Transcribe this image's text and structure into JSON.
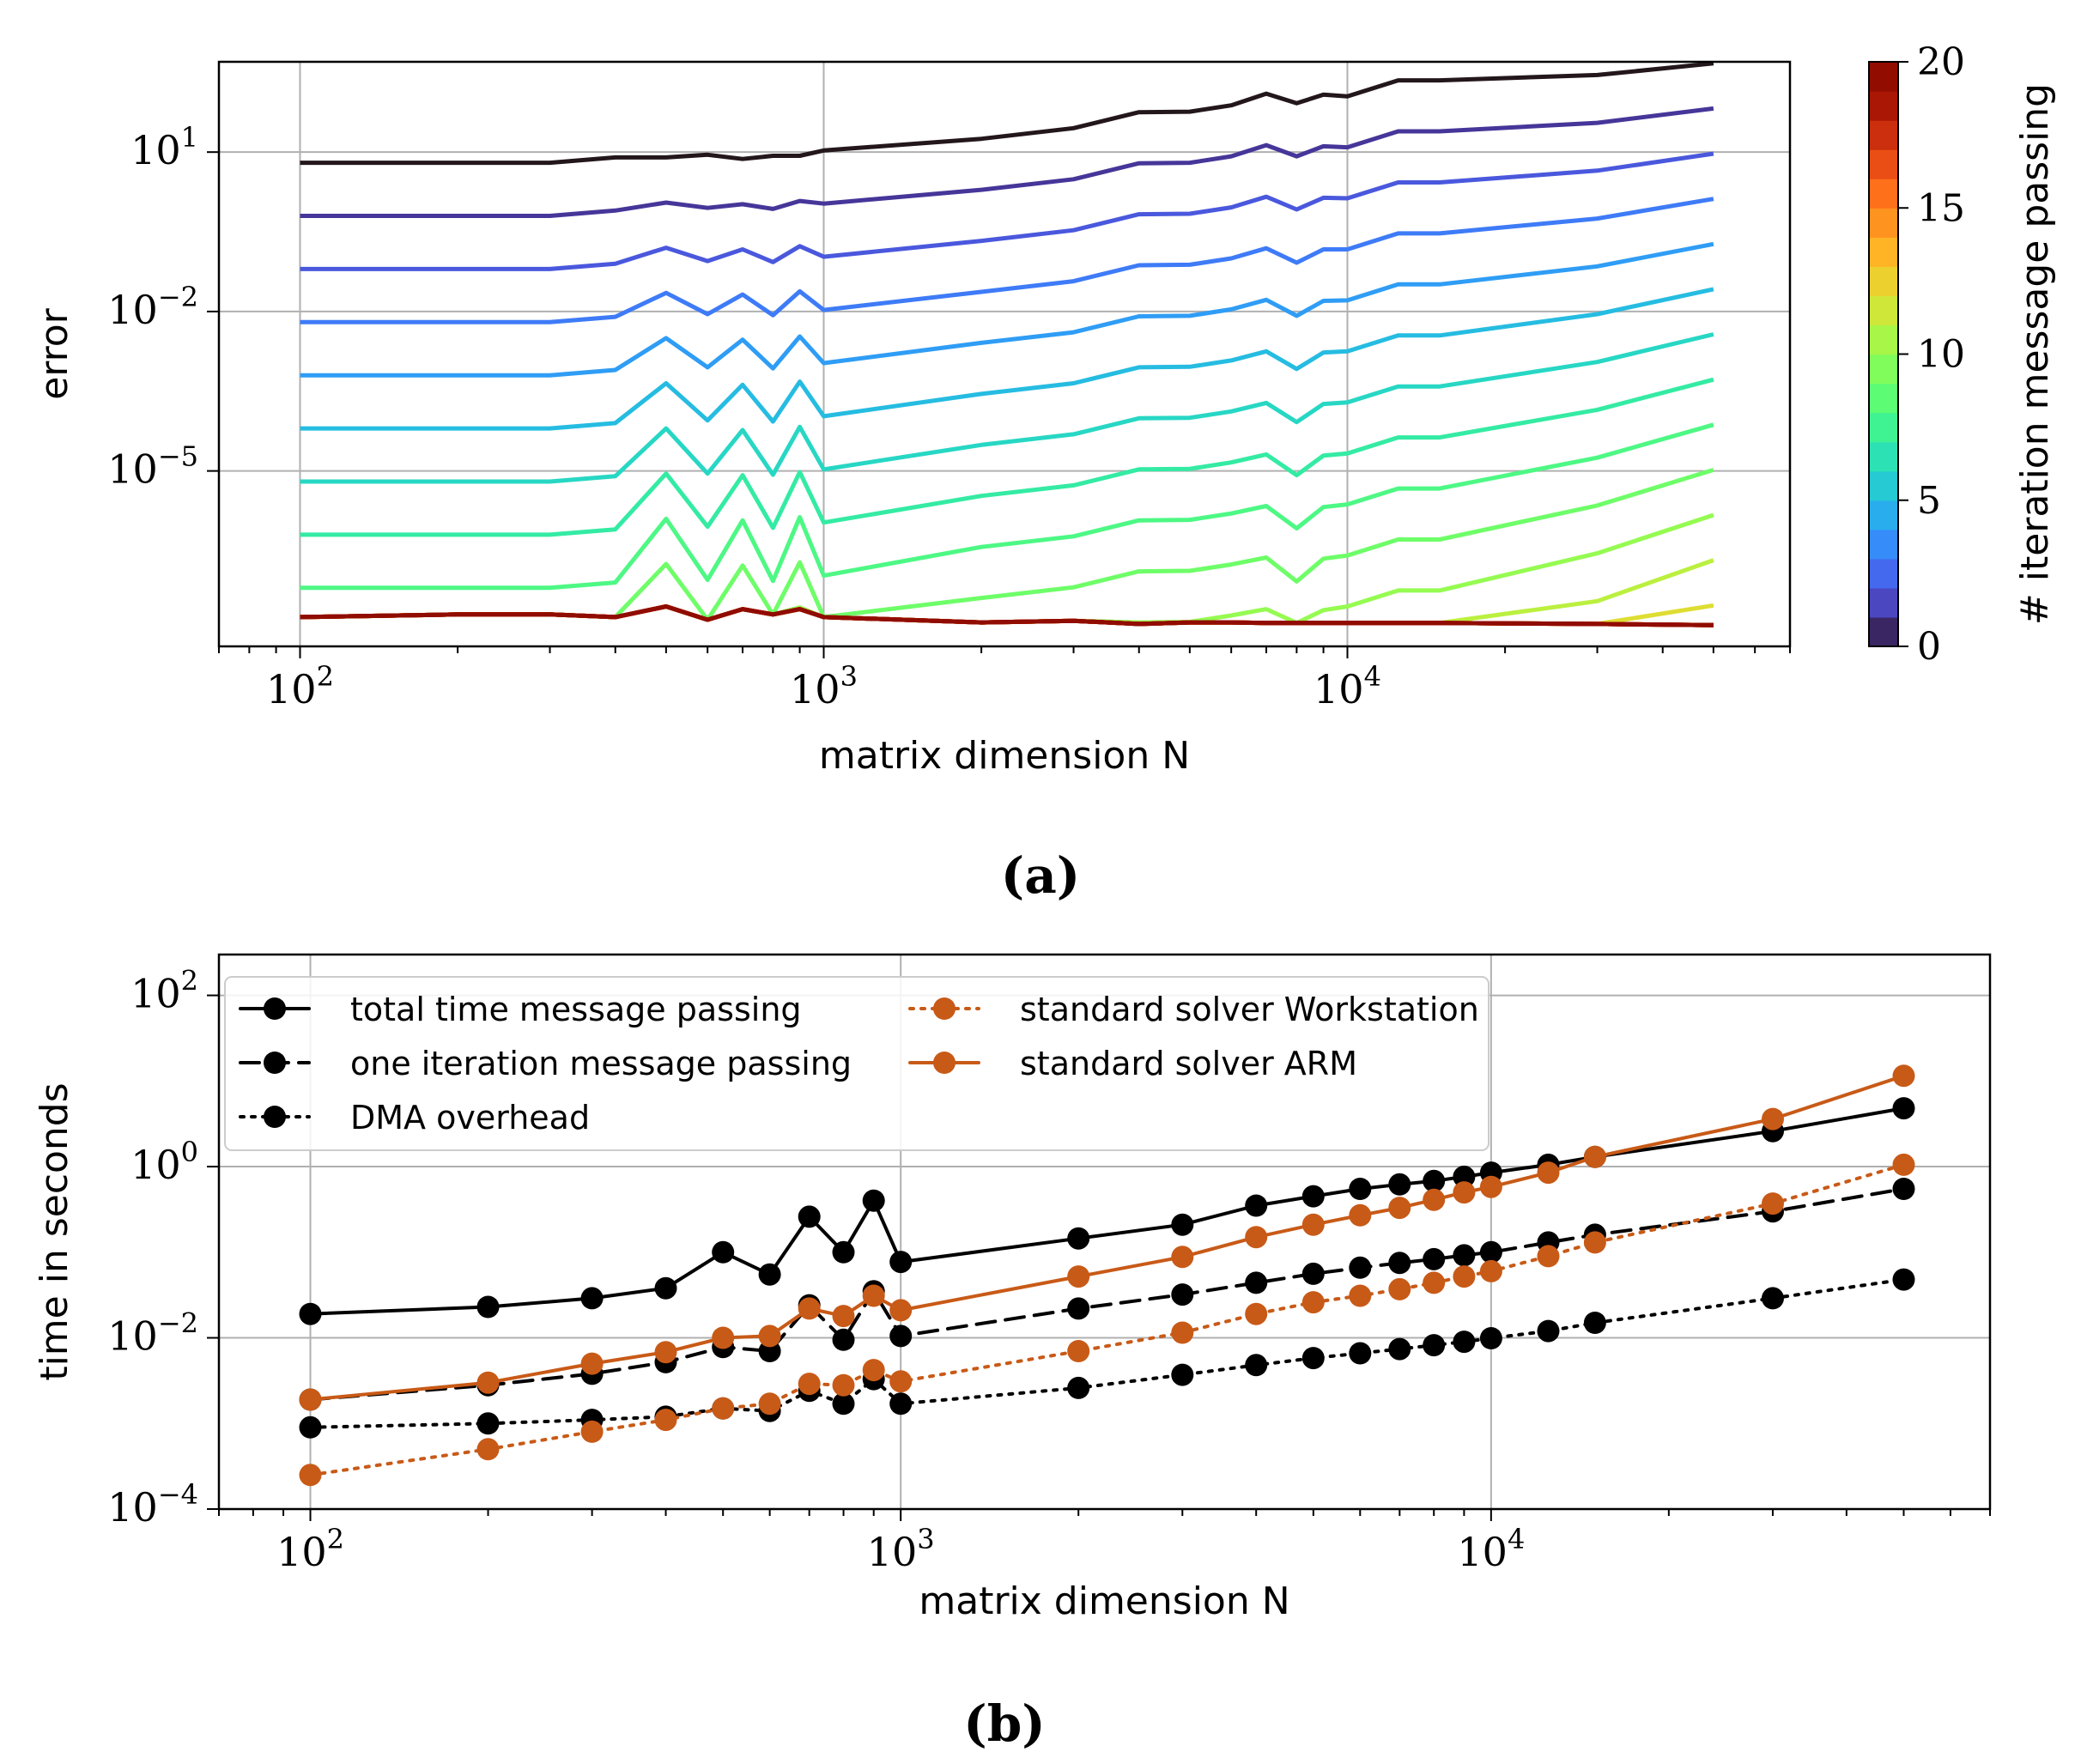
{
  "chart_data": [
    {
      "type": "line",
      "panel_label": "(a)",
      "xlabel": "matrix dimension N",
      "ylabel": "error",
      "xscale": "log",
      "yscale": "log",
      "xlim": [
        70,
        70000
      ],
      "ylim": [
        5e-09,
        500
      ],
      "x_ticks": [
        {
          "value": 100,
          "base": "10",
          "exp": "2"
        },
        {
          "value": 1000,
          "base": "10",
          "exp": "3"
        },
        {
          "value": 10000,
          "base": "10",
          "exp": "4"
        }
      ],
      "y_ticks": [
        {
          "value": 10,
          "base": "10",
          "exp": "1"
        },
        {
          "value": 0.01,
          "base": "10",
          "exp": "−2"
        },
        {
          "value": 1e-05,
          "base": "10",
          "exp": "−5"
        }
      ],
      "grid": true,
      "colorbar": {
        "label": "# iteration message passing",
        "min": 0,
        "max": 20,
        "ticks": [
          "0",
          "5",
          "10",
          "15",
          "20"
        ],
        "colormap": "turbo"
      },
      "x": [
        100,
        200,
        300,
        400,
        500,
        600,
        700,
        800,
        900,
        1000,
        2000,
        3000,
        4000,
        5000,
        6000,
        7000,
        8000,
        9000,
        10000,
        12500,
        15000,
        30000,
        50000
      ],
      "base_log_error": [
        0.8,
        0.8,
        0.8,
        0.9,
        0.9,
        0.95,
        0.87,
        0.93,
        0.93,
        1.03,
        1.25,
        1.45,
        1.75,
        1.76,
        1.88,
        2.1,
        1.92,
        2.08,
        2.05,
        2.35,
        2.35,
        2.45,
        2.67
      ],
      "decay_per_iteration": [
        1.0,
        1.0,
        1.0,
        1.0,
        0.85,
        1.0,
        0.85,
        1.0,
        0.85,
        1.0,
        0.96,
        0.96,
        0.96,
        0.96,
        0.96,
        0.97,
        1.0,
        0.97,
        0.96,
        0.96,
        0.96,
        0.9,
        0.85
      ],
      "error_floor_log": [
        -7.75,
        -7.7,
        -7.7,
        -7.75,
        -7.55,
        -7.8,
        -7.6,
        -7.7,
        -7.6,
        -7.75,
        -7.85,
        -7.82,
        -7.88,
        -7.85,
        -7.85,
        -7.86,
        -7.86,
        -7.86,
        -7.86,
        -7.86,
        -7.86,
        -7.88,
        -7.9
      ],
      "iterations": 21
    },
    {
      "type": "line",
      "panel_label": "(b)",
      "xlabel": "matrix dimension N",
      "ylabel": "time in seconds",
      "xscale": "log",
      "yscale": "log",
      "xlim": [
        70,
        70000
      ],
      "ylim": [
        0.0001,
        300
      ],
      "x_ticks": [
        {
          "value": 100,
          "base": "10",
          "exp": "2"
        },
        {
          "value": 1000,
          "base": "10",
          "exp": "3"
        },
        {
          "value": 10000,
          "base": "10",
          "exp": "4"
        }
      ],
      "y_ticks": [
        {
          "value": 100,
          "base": "10",
          "exp": "2"
        },
        {
          "value": 1,
          "base": "10",
          "exp": "0"
        },
        {
          "value": 0.01,
          "base": "10",
          "exp": "−2"
        },
        {
          "value": 0.0001,
          "base": "10",
          "exp": "−4"
        }
      ],
      "grid": true,
      "legend_placement": "top-left",
      "series": [
        {
          "name": "total time message passing",
          "color": "#000000",
          "style": "solid",
          "x": [
            100,
            200,
            300,
            400,
            500,
            600,
            700,
            800,
            900,
            1000,
            2000,
            3000,
            4000,
            5000,
            6000,
            7000,
            8000,
            9000,
            10000,
            12500,
            15000,
            30000,
            50000
          ],
          "values": [
            0.019,
            0.023,
            0.029,
            0.038,
            0.1,
            0.055,
            0.26,
            0.1,
            0.4,
            0.077,
            0.145,
            0.21,
            0.35,
            0.45,
            0.55,
            0.62,
            0.68,
            0.76,
            0.85,
            1.05,
            1.3,
            2.6,
            4.8
          ]
        },
        {
          "name": "one iteration message passing",
          "color": "#000000",
          "style": "dashed",
          "x": [
            100,
            200,
            300,
            400,
            500,
            600,
            700,
            800,
            900,
            1000,
            2000,
            3000,
            4000,
            5000,
            6000,
            7000,
            8000,
            9000,
            10000,
            12500,
            15000,
            30000,
            50000
          ],
          "values": [
            0.0019,
            0.0028,
            0.0038,
            0.0052,
            0.0078,
            0.007,
            0.024,
            0.0095,
            0.035,
            0.0105,
            0.022,
            0.032,
            0.044,
            0.056,
            0.066,
            0.075,
            0.083,
            0.092,
            0.1,
            0.13,
            0.16,
            0.3,
            0.55
          ]
        },
        {
          "name": "DMA overhead",
          "color": "#000000",
          "style": "dotted",
          "x": [
            100,
            200,
            300,
            400,
            500,
            600,
            700,
            800,
            900,
            1000,
            2000,
            3000,
            4000,
            5000,
            6000,
            7000,
            8000,
            9000,
            10000,
            12500,
            15000,
            30000,
            50000
          ],
          "values": [
            0.0009,
            0.001,
            0.0011,
            0.0012,
            0.0015,
            0.0014,
            0.0024,
            0.0017,
            0.0033,
            0.0017,
            0.0026,
            0.0037,
            0.0048,
            0.0058,
            0.0066,
            0.0074,
            0.0082,
            0.009,
            0.0099,
            0.012,
            0.015,
            0.029,
            0.048
          ]
        },
        {
          "name": "standard solver Workstation",
          "color": "#c85a17",
          "style": "dotted",
          "x": [
            100,
            200,
            300,
            400,
            500,
            600,
            700,
            800,
            900,
            1000,
            2000,
            3000,
            4000,
            5000,
            6000,
            7000,
            8000,
            9000,
            10000,
            12500,
            15000,
            30000,
            50000
          ],
          "values": [
            0.00025,
            0.0005,
            0.0008,
            0.0011,
            0.0015,
            0.0017,
            0.0029,
            0.0028,
            0.0042,
            0.0031,
            0.007,
            0.0115,
            0.019,
            0.026,
            0.031,
            0.037,
            0.044,
            0.052,
            0.06,
            0.09,
            0.13,
            0.37,
            1.05
          ]
        },
        {
          "name": "standard solver ARM",
          "color": "#c85a17",
          "style": "solid",
          "x": [
            100,
            200,
            300,
            400,
            500,
            600,
            700,
            800,
            900,
            1000,
            2000,
            3000,
            4000,
            5000,
            6000,
            7000,
            8000,
            9000,
            10000,
            12500,
            15000,
            30000,
            50000
          ],
          "values": [
            0.0019,
            0.003,
            0.005,
            0.0068,
            0.01,
            0.0105,
            0.022,
            0.018,
            0.031,
            0.021,
            0.052,
            0.088,
            0.15,
            0.21,
            0.27,
            0.33,
            0.41,
            0.5,
            0.58,
            0.85,
            1.3,
            3.6,
            11.5
          ]
        }
      ]
    }
  ]
}
